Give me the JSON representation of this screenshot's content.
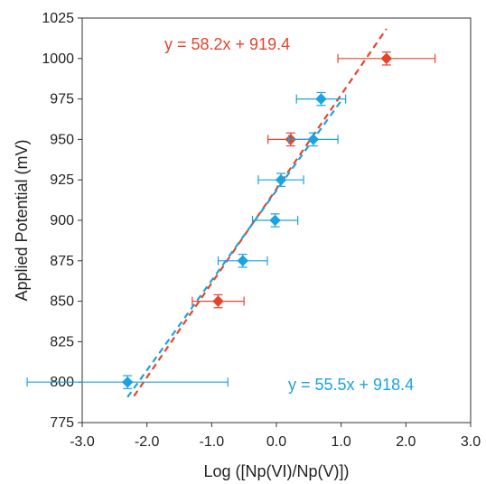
{
  "chart_data": {
    "type": "scatter",
    "title": "",
    "xlabel": "Log ([Np(VI)/Np(V)])",
    "ylabel": "Applied Potential (mV)",
    "xlim": [
      -3.0,
      3.0
    ],
    "ylim": [
      775,
      1025
    ],
    "x_ticks": [
      -3.0,
      -2.0,
      -1.0,
      0.0,
      1.0,
      2.0,
      3.0
    ],
    "x_tick_labels": [
      "-3.0",
      "-2.0",
      "-1.0",
      "0.0",
      "1.0",
      "2.0",
      "3.0"
    ],
    "y_ticks": [
      775,
      800,
      825,
      850,
      875,
      900,
      925,
      950,
      975,
      1000,
      1025
    ],
    "y_tick_labels": [
      "775",
      "800",
      "825",
      "850",
      "875",
      "900",
      "925",
      "950",
      "975",
      "1000",
      "1025"
    ],
    "grid": false,
    "series": [
      {
        "color": "#e8432a",
        "marker": "diamond",
        "points": [
          {
            "x": -0.9,
            "y": 850,
            "xerr": 0.4,
            "yerr": 4
          },
          {
            "x": 0.22,
            "y": 950,
            "xerr": 0.35,
            "yerr": 4
          },
          {
            "x": 1.7,
            "y": 1000,
            "xerr": 0.75,
            "yerr": 4
          }
        ],
        "fit": {
          "slope": 58.2,
          "intercept": 919.4,
          "x_range": [
            -2.2,
            1.7
          ],
          "style": "dashed"
        },
        "equation": "y = 58.2x + 919.4"
      },
      {
        "color": "#1aa3e0",
        "marker": "diamond",
        "points": [
          {
            "x": -2.3,
            "y": 800,
            "xerr": 1.55,
            "yerr": 4
          },
          {
            "x": -0.52,
            "y": 875,
            "xerr": 0.38,
            "yerr": 4
          },
          {
            "x": -0.02,
            "y": 900,
            "xerr": 0.35,
            "yerr": 4
          },
          {
            "x": 0.07,
            "y": 925,
            "xerr": 0.35,
            "yerr": 4
          },
          {
            "x": 0.57,
            "y": 950,
            "xerr": 0.38,
            "yerr": 4
          },
          {
            "x": 0.69,
            "y": 975,
            "xerr": 0.38,
            "yerr": 4
          }
        ],
        "fit": {
          "slope": 55.5,
          "intercept": 918.4,
          "x_range": [
            -2.3,
            1.0
          ],
          "style": "dashed"
        },
        "equation": "y = 55.5x + 918.4"
      }
    ]
  }
}
